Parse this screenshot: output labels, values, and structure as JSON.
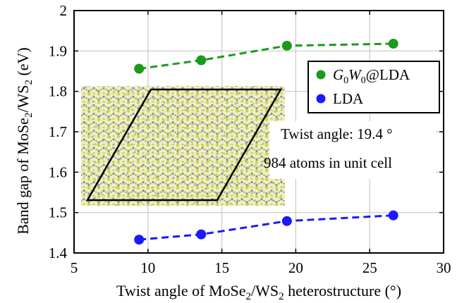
{
  "chart_data": {
    "type": "line",
    "xlabel": {
      "pre": "Twist angle of MoSe",
      "sub1": "2",
      "mid": "/WS",
      "sub2": "2",
      "post": " heterostructure (°)"
    },
    "ylabel": {
      "pre": "Band gap of MoSe",
      "sub1": "2",
      "mid": "/WS",
      "sub2": "2",
      "post": " (eV)"
    },
    "xlim": [
      5,
      30
    ],
    "ylim": [
      1.4,
      2.0
    ],
    "xticks": [
      5,
      10,
      15,
      20,
      25,
      30
    ],
    "yticks": [
      1.4,
      1.5,
      1.6,
      1.7,
      1.8,
      1.9,
      2.0
    ],
    "xtick_labels": [
      "5",
      "10",
      "15",
      "20",
      "25",
      "30"
    ],
    "ytick_labels": [
      "1.4",
      "1.5",
      "1.6",
      "1.7",
      "1.8",
      "1.9",
      "2"
    ],
    "grid": true,
    "legend_position": "top-right",
    "series": [
      {
        "legend": {
          "G": "G",
          "g_sub": "0",
          "W": "W",
          "w_sub": "0",
          "rest": "@LDA"
        },
        "color": "#1b9a1b",
        "line_style": "dashed",
        "x": [
          9.4,
          13.6,
          19.4,
          26.6
        ],
        "y": [
          1.856,
          1.877,
          1.913,
          1.918
        ]
      },
      {
        "legend": {
          "label": "LDA"
        },
        "color": "#1a1aff",
        "line_style": "dashed",
        "x": [
          9.4,
          13.6,
          19.4,
          26.6
        ],
        "y": [
          1.433,
          1.446,
          1.479,
          1.493
        ]
      }
    ],
    "annotations": [
      {
        "text": "Twist angle: 19.4 °"
      },
      {
        "text": "984 atoms in unit cell"
      }
    ],
    "inset": {
      "description_icon": "moire-lattice-image",
      "atom_colors": [
        "#c8d64a",
        "#9a8aa0"
      ],
      "cell_outline_color": "#000000"
    }
  }
}
